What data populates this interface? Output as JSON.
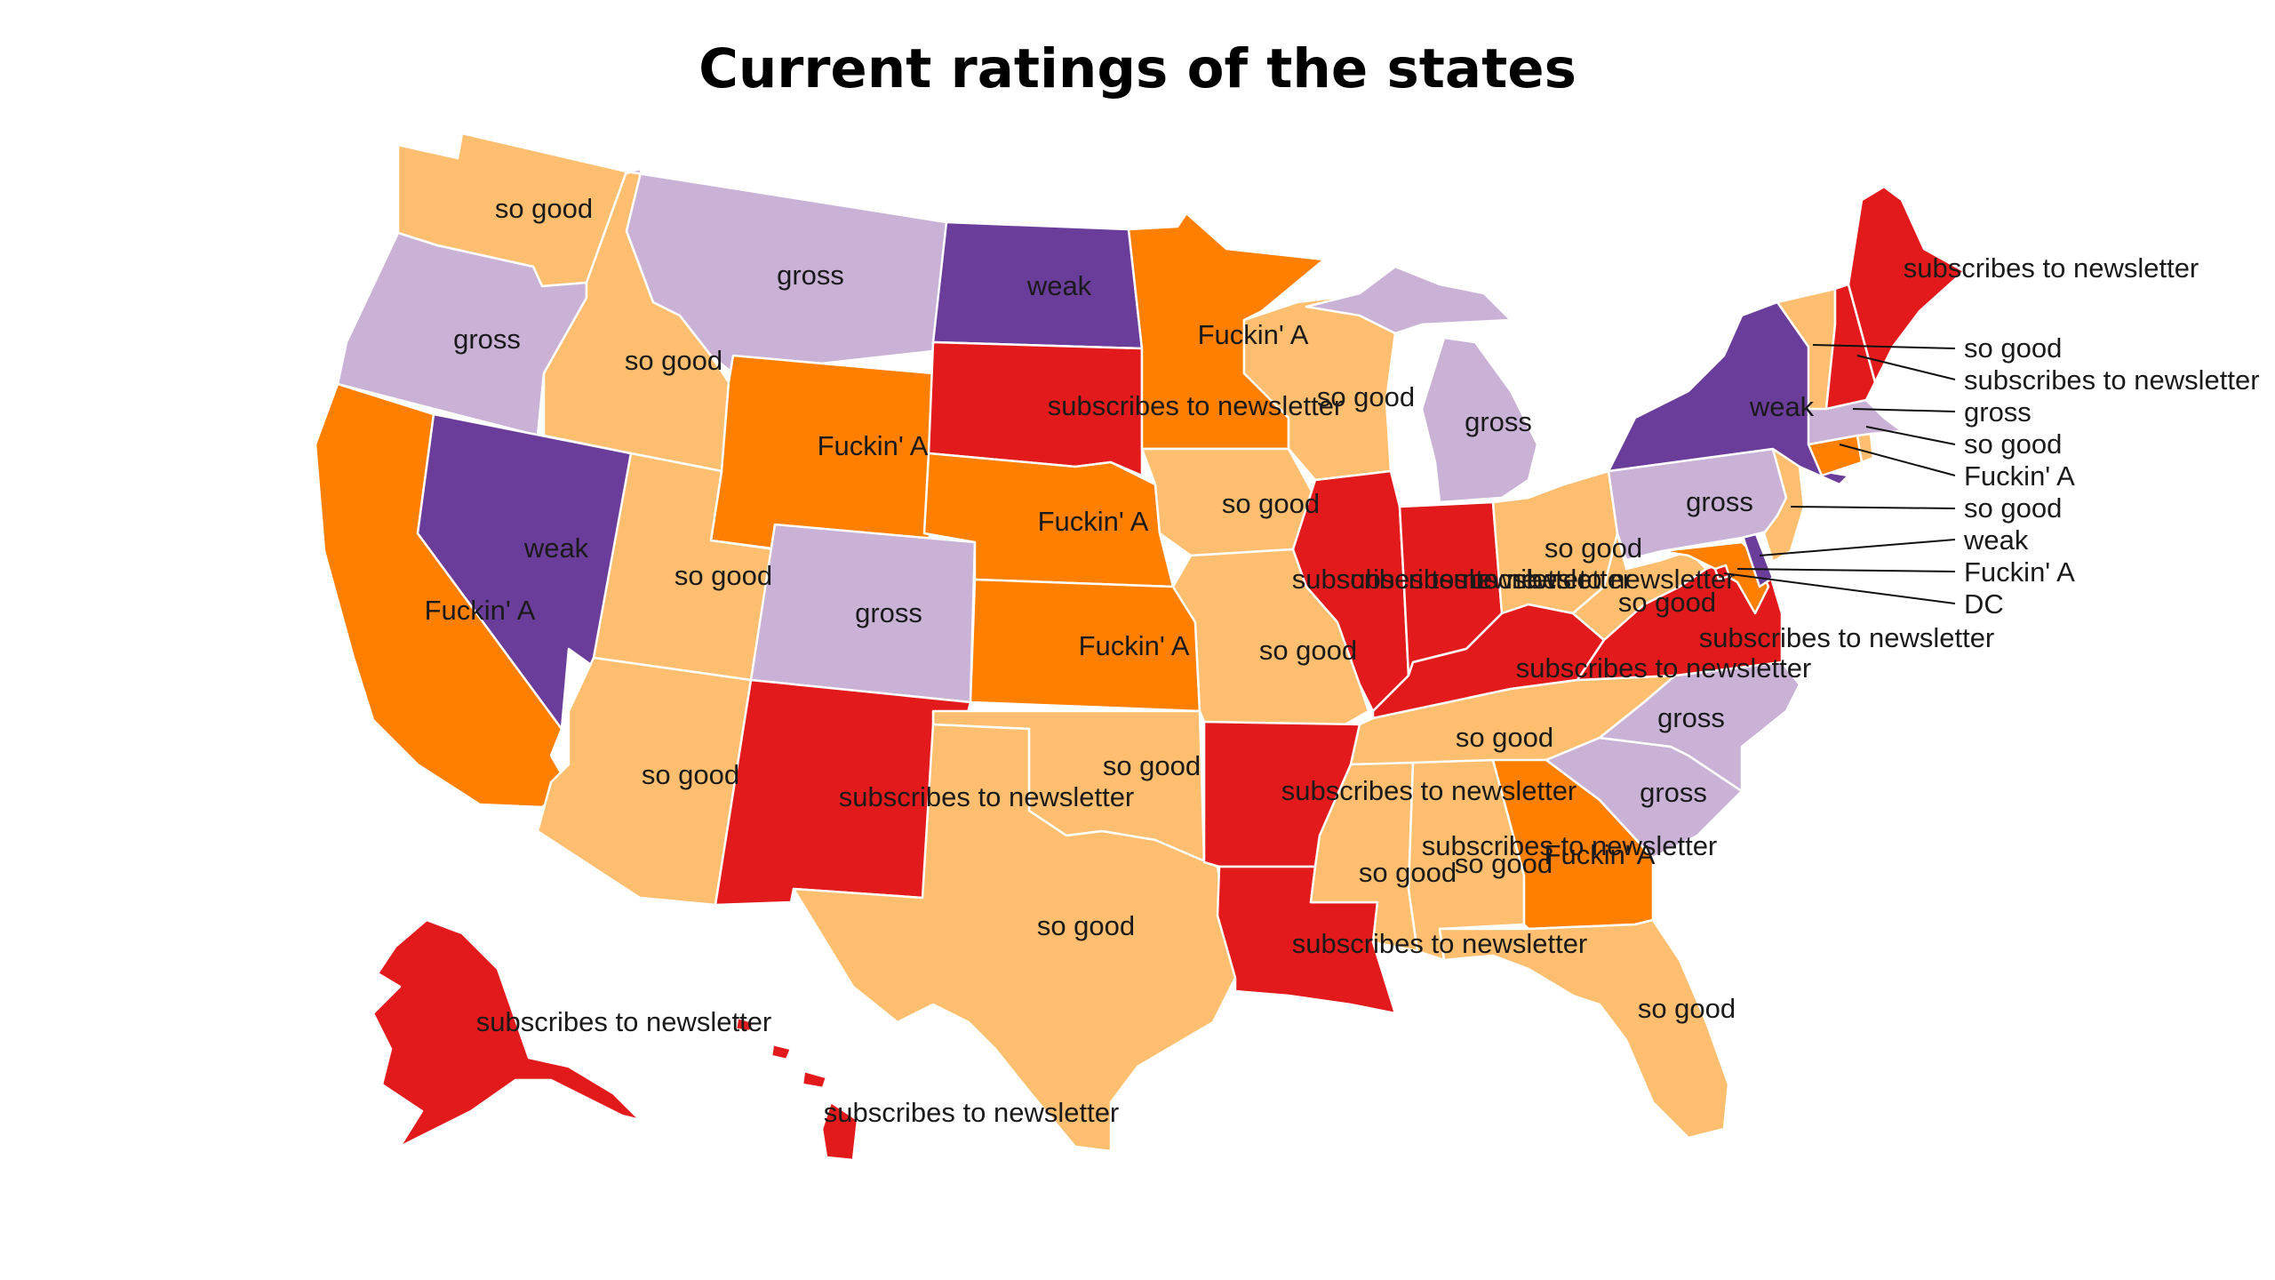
{
  "title": "Current ratings of the states",
  "colors": {
    "so good": "#fdbf6f",
    "gross": "#cab2d6",
    "weak": "#6a3d9a",
    "Fuckin' A": "#ff7f00",
    "subscribes to newsletter": "#e31a1c"
  },
  "states": [
    {
      "id": "WA",
      "rating": "so good",
      "label": "so good"
    },
    {
      "id": "OR",
      "rating": "gross",
      "label": "gross"
    },
    {
      "id": "CA",
      "rating": "Fuckin' A",
      "label": "Fuckin' A"
    },
    {
      "id": "NV",
      "rating": "weak",
      "label": "weak"
    },
    {
      "id": "ID",
      "rating": "so good",
      "label": "so good"
    },
    {
      "id": "MT",
      "rating": "gross",
      "label": "gross"
    },
    {
      "id": "WY",
      "rating": "Fuckin' A",
      "label": "Fuckin' A"
    },
    {
      "id": "UT",
      "rating": "so good",
      "label": "so good"
    },
    {
      "id": "AZ",
      "rating": "so good",
      "label": "so good"
    },
    {
      "id": "CO",
      "rating": "gross",
      "label": "gross"
    },
    {
      "id": "NM",
      "rating": "subscribes to newsletter",
      "label": "subscribes to newsletter"
    },
    {
      "id": "ND",
      "rating": "weak",
      "label": "weak"
    },
    {
      "id": "SD",
      "rating": "subscribes to newsletter",
      "label": "subscribes to newsletter"
    },
    {
      "id": "NE",
      "rating": "Fuckin' A",
      "label": "Fuckin' A"
    },
    {
      "id": "KS",
      "rating": "Fuckin' A",
      "label": "Fuckin' A"
    },
    {
      "id": "OK",
      "rating": "so good",
      "label": "so good"
    },
    {
      "id": "TX",
      "rating": "so good",
      "label": "so good"
    },
    {
      "id": "MN",
      "rating": "Fuckin' A",
      "label": "Fuckin' A"
    },
    {
      "id": "IA",
      "rating": "so good",
      "label": "so good"
    },
    {
      "id": "MO",
      "rating": "so good",
      "label": "so good"
    },
    {
      "id": "AR",
      "rating": "subscribes to newsletter",
      "label": "subscribes to newsletter"
    },
    {
      "id": "LA",
      "rating": "subscribes to newsletter",
      "label": "subscribes to newsletter"
    },
    {
      "id": "WI",
      "rating": "so good",
      "label": "so good"
    },
    {
      "id": "MI",
      "rating": "gross",
      "label": "gross"
    },
    {
      "id": "IL",
      "rating": "subscribes to newsletter",
      "label": "subscribes to newsletter"
    },
    {
      "id": "IN",
      "rating": "subscribes to newsletter",
      "label": "subscribes to newsletter"
    },
    {
      "id": "OH",
      "rating": "so good",
      "label": "so good"
    },
    {
      "id": "KY",
      "rating": "subscribes to newsletter",
      "label": "subscribes to newsletter"
    },
    {
      "id": "TN",
      "rating": "so good",
      "label": "so good"
    },
    {
      "id": "MS",
      "rating": "so good",
      "label": "so good"
    },
    {
      "id": "AL",
      "rating": "so good",
      "label": "so good"
    },
    {
      "id": "GA",
      "rating": "Fuckin' A",
      "label": "Fuckin' A"
    },
    {
      "id": "FL",
      "rating": "so good",
      "label": "so good"
    },
    {
      "id": "SC",
      "rating": "gross",
      "label": "gross"
    },
    {
      "id": "NC",
      "rating": "gross",
      "label": "gross"
    },
    {
      "id": "VA",
      "rating": "subscribes to newsletter",
      "label": "subscribes to newsletter"
    },
    {
      "id": "WV",
      "rating": "so good",
      "label": "so good"
    },
    {
      "id": "MD",
      "rating": "Fuckin' A",
      "label": "Fuckin' A"
    },
    {
      "id": "DE",
      "rating": "weak",
      "label": "weak"
    },
    {
      "id": "DC",
      "rating": "subscribes to newsletter",
      "label": "DC"
    },
    {
      "id": "PA",
      "rating": "gross",
      "label": "gross"
    },
    {
      "id": "NJ",
      "rating": "so good",
      "label": "so good"
    },
    {
      "id": "NY",
      "rating": "weak",
      "label": "weak"
    },
    {
      "id": "CT",
      "rating": "Fuckin' A",
      "label": "Fuckin' A"
    },
    {
      "id": "RI",
      "rating": "so good",
      "label": "so good"
    },
    {
      "id": "MA",
      "rating": "gross",
      "label": "gross"
    },
    {
      "id": "VT",
      "rating": "so good",
      "label": "so good"
    },
    {
      "id": "NH",
      "rating": "subscribes to newsletter",
      "label": "subscribes to newsletter"
    },
    {
      "id": "ME",
      "rating": "subscribes to newsletter",
      "label": "subscribes to newsletter"
    },
    {
      "id": "AK",
      "rating": "subscribes to newsletter",
      "label": "subscribes to newsletter"
    },
    {
      "id": "HI",
      "rating": "subscribes to newsletter",
      "label": "subscribes to newsletter"
    }
  ],
  "extra_labels": [
    {
      "id": "VA-overlap",
      "text": "subscribes to newsletter"
    },
    {
      "id": "WV-overlap",
      "text": "subscribes to newsletter"
    }
  ]
}
